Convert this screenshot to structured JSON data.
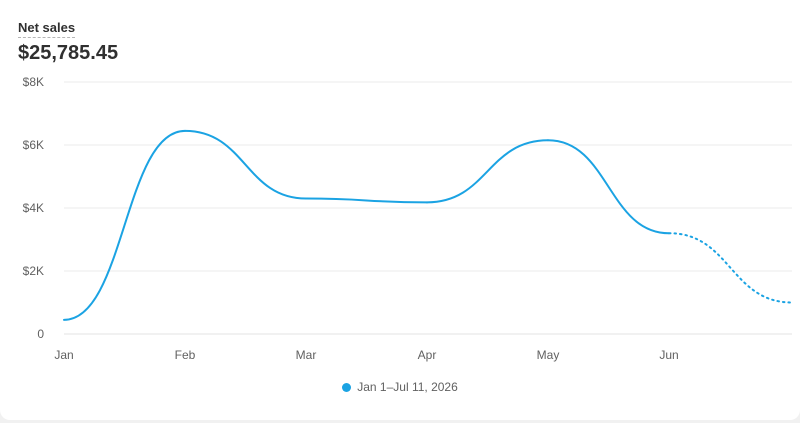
{
  "metric": {
    "label": "Net sales",
    "value": "$25,785.45"
  },
  "colors": {
    "series": "#1ba3e3",
    "grid": "#ebebeb",
    "text": "#616161"
  },
  "chart_data": {
    "type": "line",
    "title": "",
    "xlabel": "",
    "ylabel": "",
    "ylim": [
      0,
      8000
    ],
    "yticks": [
      {
        "value": 0,
        "label": "0"
      },
      {
        "value": 2000,
        "label": "$2K"
      },
      {
        "value": 4000,
        "label": "$4K"
      },
      {
        "value": 6000,
        "label": "$6K"
      },
      {
        "value": 8000,
        "label": "$8K"
      }
    ],
    "xticks": [
      "Jan",
      "Feb",
      "Mar",
      "Apr",
      "May",
      "Jun"
    ],
    "grid": true,
    "legend_position": "bottom-center",
    "series": [
      {
        "name": "Jan 1–Jul 11, 2026",
        "points": [
          {
            "x": "Jan",
            "y": 450,
            "style": "solid"
          },
          {
            "x": "Feb",
            "y": 6450,
            "style": "solid"
          },
          {
            "x": "Mar",
            "y": 4300,
            "style": "solid"
          },
          {
            "x": "Apr",
            "y": 4180,
            "style": "solid"
          },
          {
            "x": "May",
            "y": 6150,
            "style": "solid"
          },
          {
            "x": "Jun",
            "y": 3200,
            "style": "solid"
          },
          {
            "x": "Jul",
            "y": 1000,
            "style": "dotted"
          }
        ]
      }
    ]
  }
}
